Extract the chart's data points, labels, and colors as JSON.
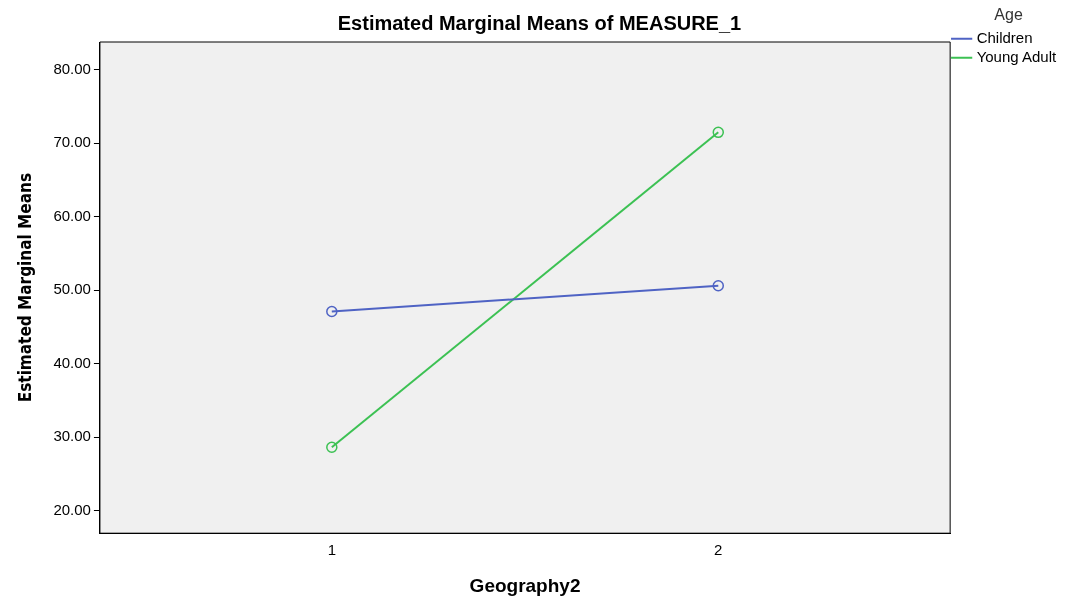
{
  "chart_data": {
    "type": "line",
    "title": "Estimated Marginal Means of MEASURE_1",
    "xlabel": "Geography2",
    "ylabel": "Estimated Marginal Means",
    "legend_title": "Age",
    "x": [
      1,
      2
    ],
    "xlim": [
      0.4,
      2.6
    ],
    "xticks": [
      1,
      2
    ],
    "ylim": [
      16.9,
      83.8
    ],
    "yticks": [
      {
        "value": 20,
        "label": "20.00"
      },
      {
        "value": 30,
        "label": "30.00"
      },
      {
        "value": 40,
        "label": "40.00"
      },
      {
        "value": 50,
        "label": "50.00"
      },
      {
        "value": 60,
        "label": "60.00"
      },
      {
        "value": 70,
        "label": "70.00"
      },
      {
        "value": 80,
        "label": "80.00"
      }
    ],
    "series": [
      {
        "name": "Children",
        "color": "#4f63c4",
        "values": [
          47.1,
          50.6
        ]
      },
      {
        "name": "Young Adult",
        "color": "#3cc153",
        "values": [
          28.6,
          71.5
        ]
      }
    ],
    "marker": "circle",
    "grid": false,
    "legend": "top right"
  }
}
